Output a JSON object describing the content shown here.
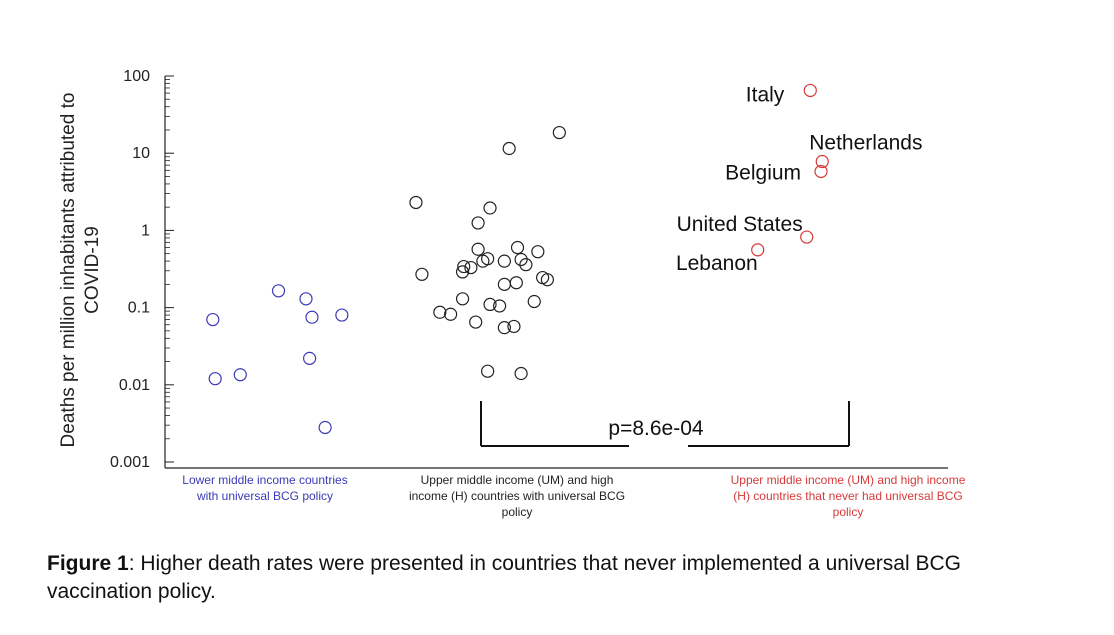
{
  "chart_data": {
    "type": "scatter",
    "title": "",
    "ylabel": "Deaths per million inhabitants attributed to COVID-19",
    "ylabel_lines": [
      "Deaths per million inhabitants attributed to",
      "COVID-19"
    ],
    "yscale": "log",
    "ylim": [
      0.001,
      100
    ],
    "yticks": [
      "100",
      "10",
      "1",
      "0.1",
      "0.01",
      "0.001"
    ],
    "grid": false,
    "groups": [
      {
        "name": "Lower middle income countries with universal BCG policy",
        "label_lines": [
          "Lower middle income countries",
          "with universal BCG policy"
        ],
        "color": "#3a3ab8",
        "points": [
          {
            "x": 1.95,
            "y": 0.165
          },
          {
            "x": 2.18,
            "y": 0.13
          },
          {
            "x": 2.48,
            "y": 0.08
          },
          {
            "x": 1.4,
            "y": 0.07
          },
          {
            "x": 2.23,
            "y": 0.075
          },
          {
            "x": 2.21,
            "y": 0.022
          },
          {
            "x": 1.63,
            "y": 0.0135
          },
          {
            "x": 1.42,
            "y": 0.012
          },
          {
            "x": 2.34,
            "y": 0.0028
          }
        ]
      },
      {
        "name": "Upper middle income (UM) and high income (H) countries with universal BCG policy",
        "label_lines": [
          "Upper middle income (UM)  and high",
          "income (H) countries with universal BCG",
          "policy"
        ],
        "color": "#222222",
        "points": [
          {
            "x": 4.3,
            "y": 18.5
          },
          {
            "x": 3.88,
            "y": 11.5
          },
          {
            "x": 3.1,
            "y": 2.3
          },
          {
            "x": 3.72,
            "y": 1.95
          },
          {
            "x": 3.62,
            "y": 1.25
          },
          {
            "x": 3.62,
            "y": 0.57
          },
          {
            "x": 3.95,
            "y": 0.6
          },
          {
            "x": 4.12,
            "y": 0.53
          },
          {
            "x": 3.7,
            "y": 0.43
          },
          {
            "x": 3.66,
            "y": 0.4
          },
          {
            "x": 3.84,
            "y": 0.4
          },
          {
            "x": 3.98,
            "y": 0.42
          },
          {
            "x": 4.02,
            "y": 0.36
          },
          {
            "x": 3.5,
            "y": 0.34
          },
          {
            "x": 3.56,
            "y": 0.33
          },
          {
            "x": 3.49,
            "y": 0.29
          },
          {
            "x": 3.15,
            "y": 0.27
          },
          {
            "x": 4.16,
            "y": 0.245
          },
          {
            "x": 4.2,
            "y": 0.23
          },
          {
            "x": 3.94,
            "y": 0.21
          },
          {
            "x": 3.84,
            "y": 0.2
          },
          {
            "x": 3.49,
            "y": 0.13
          },
          {
            "x": 4.09,
            "y": 0.12
          },
          {
            "x": 3.72,
            "y": 0.11
          },
          {
            "x": 3.8,
            "y": 0.105
          },
          {
            "x": 3.3,
            "y": 0.087
          },
          {
            "x": 3.39,
            "y": 0.082
          },
          {
            "x": 3.6,
            "y": 0.065
          },
          {
            "x": 3.92,
            "y": 0.057
          },
          {
            "x": 3.84,
            "y": 0.055
          },
          {
            "x": 3.7,
            "y": 0.015
          },
          {
            "x": 3.98,
            "y": 0.014
          }
        ]
      },
      {
        "name": "Upper middle income (UM) and high income (H) countries that never had universal BCG policy",
        "label_lines": [
          "Upper middle income (UM)  and high income",
          "(H) countries that never had universal BCG",
          "policy"
        ],
        "color": "#d83a3a",
        "points": [
          {
            "x": 6.4,
            "y": 65,
            "label": "Italy"
          },
          {
            "x": 6.5,
            "y": 7.8,
            "label": "Netherlands"
          },
          {
            "x": 6.49,
            "y": 5.8,
            "label": "Belgium"
          },
          {
            "x": 6.37,
            "y": 0.82,
            "label": "United States"
          },
          {
            "x": 5.96,
            "y": 0.56,
            "label": "Lebanon"
          }
        ]
      }
    ],
    "annotations": [
      {
        "text": "p=8.6e-04",
        "type": "significance-bracket",
        "between": [
          "group 2",
          "group 3"
        ]
      }
    ]
  },
  "caption": {
    "label": "Figure 1",
    "text": ":  Higher death rates were presented in countries that never implemented a universal BCG vaccination policy."
  }
}
